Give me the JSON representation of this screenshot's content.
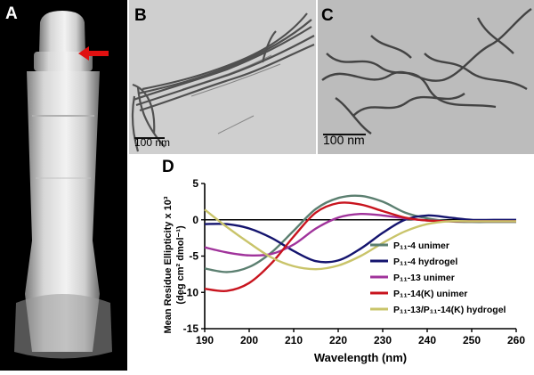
{
  "figure": {
    "panels": {
      "a": {
        "letter": "A"
      },
      "b": {
        "letter": "B",
        "scale_label": "100 nm"
      },
      "c": {
        "letter": "C",
        "scale_label": "100 nm"
      },
      "d": {
        "letter": "D"
      }
    }
  },
  "colors": {
    "photo_background": "#000000",
    "tube": "#d9d9d9",
    "arrow": "#e01010",
    "tem_background_b": "#cfcfcf",
    "tem_background_c": "#bcbcbc"
  },
  "chart_data": {
    "type": "line",
    "title": "",
    "xlabel": "Wavelength (nm)",
    "ylabel_line1": "Mean Residue Ellipticity x 10³",
    "ylabel_line2": "(deg cm² dmol⁻¹)",
    "xlim": [
      190,
      260
    ],
    "ylim": [
      -15,
      5
    ],
    "xticks": [
      190,
      200,
      210,
      220,
      230,
      240,
      250,
      260
    ],
    "yticks": [
      5,
      0,
      -5,
      -10,
      -15
    ],
    "grid": false,
    "zero_line": true,
    "legend_position": "right",
    "series": [
      {
        "name": "P₁₁-4 unimer",
        "color": "#5b7f70",
        "x": [
          190,
          195,
          200,
          205,
          210,
          215,
          220,
          225,
          230,
          235,
          240,
          245,
          250,
          255,
          260
        ],
        "y": [
          -6.7,
          -7.2,
          -6.5,
          -4.5,
          -1.5,
          1.5,
          3.0,
          3.3,
          2.5,
          1.0,
          0.2,
          -0.2,
          -0.3,
          -0.3,
          -0.3
        ]
      },
      {
        "name": "P₁₁-4 hydrogel",
        "color": "#14146e",
        "x": [
          190,
          195,
          200,
          205,
          210,
          215,
          220,
          225,
          230,
          235,
          240,
          245,
          250,
          255,
          260
        ],
        "y": [
          -0.6,
          -0.6,
          -1.2,
          -2.5,
          -4.3,
          -5.7,
          -5.6,
          -4.0,
          -1.8,
          0.0,
          0.6,
          0.3,
          0.0,
          0.0,
          0.0
        ]
      },
      {
        "name": "P₁₁-13 unimer",
        "color": "#a0339b",
        "x": [
          190,
          195,
          200,
          205,
          210,
          215,
          220,
          225,
          230,
          235,
          240,
          245,
          250,
          255,
          260
        ],
        "y": [
          -3.8,
          -4.5,
          -4.9,
          -4.7,
          -3.4,
          -1.2,
          0.3,
          0.8,
          0.6,
          0.2,
          -0.1,
          -0.2,
          -0.2,
          -0.2,
          -0.2
        ]
      },
      {
        "name": "P₁₁-14(K) unimer",
        "color": "#c8141e",
        "x": [
          190,
          195,
          200,
          205,
          210,
          215,
          220,
          225,
          230,
          235,
          240,
          245,
          250,
          255,
          260
        ],
        "y": [
          -9.5,
          -9.8,
          -8.7,
          -6.0,
          -2.3,
          1.0,
          2.3,
          2.1,
          1.2,
          0.3,
          -0.1,
          -0.2,
          -0.2,
          -0.2,
          -0.2
        ]
      },
      {
        "name": "P₁₁-13/P₁₁-14(K) hydrogel",
        "color": "#c9c46a",
        "x": [
          190,
          195,
          200,
          205,
          210,
          215,
          220,
          225,
          230,
          235,
          240,
          245,
          250,
          255,
          260
        ],
        "y": [
          1.4,
          -1.0,
          -3.2,
          -5.2,
          -6.4,
          -6.8,
          -6.3,
          -5.0,
          -3.2,
          -1.6,
          -0.6,
          -0.2,
          -0.2,
          -0.2,
          -0.2
        ]
      }
    ]
  }
}
